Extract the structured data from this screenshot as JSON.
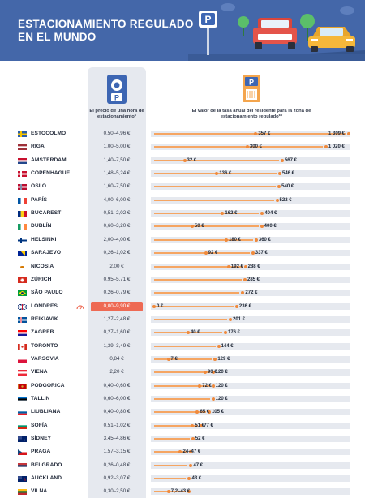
{
  "header": {
    "title_line1": "ESTACIONAMIENTO REGULADO",
    "title_line2": "EN EL MUNDO"
  },
  "columns": {
    "hourly_price": "El precio de una hora de estacionamiento*",
    "annual_fee": "El valor de la tasa anual del residente para la zona de estacionamiento regulado**"
  },
  "icons": {
    "parking_disc": "parking-disc-icon",
    "parking_meter": "parking-meter-icon",
    "highlight_marker": "speedometer-icon"
  },
  "colors": {
    "header_bg": "#4467a9",
    "bar": "#f5a562",
    "dot": "#f08a3c",
    "highlight": "#ee6a54"
  },
  "chart_data": {
    "type": "table",
    "cities": [
      {
        "name": "ESTOCOLMO",
        "flag": "SE",
        "range": "0,50–4,96 €",
        "low": 357,
        "high": 1309,
        "low_label": "357 €",
        "high_label": "1 309 €"
      },
      {
        "name": "RIGA",
        "flag": "LV",
        "range": "1,00–5,00 €",
        "low": 300,
        "high": 1020,
        "low_label": "300 €",
        "high_label": "1 020 €"
      },
      {
        "name": "ÁMSTERDAM",
        "flag": "NL",
        "range": "1,40–7,50 €",
        "low": 32,
        "high": 567,
        "low_label": "32 €",
        "high_label": "567 €"
      },
      {
        "name": "COPENHAGUE",
        "flag": "DK",
        "range": "1,48–5,24 €",
        "low": 136,
        "high": 546,
        "low_label": "136 €",
        "high_label": "546 €"
      },
      {
        "name": "OSLO",
        "flag": "NO",
        "range": "1,60–7,50 €",
        "low": 540,
        "high": null,
        "low_label": "540 €",
        "high_label": ""
      },
      {
        "name": "PARÍS",
        "flag": "FR",
        "range": "4,00–6,00 €",
        "low": 522,
        "high": null,
        "low_label": "522 €",
        "high_label": ""
      },
      {
        "name": "BUCAREST",
        "flag": "RO",
        "range": "0,51–2,02 €",
        "low": 162,
        "high": 404,
        "low_label": "162 €",
        "high_label": "404 €"
      },
      {
        "name": "DUBLÍN",
        "flag": "IE",
        "range": "0,60–3,20 €",
        "low": 50,
        "high": 400,
        "low_label": "50 €",
        "high_label": "400 €"
      },
      {
        "name": "HELSINKI",
        "flag": "FI",
        "range": "2,00–4,00 €",
        "low": 180,
        "high": 360,
        "low_label": "180 €",
        "high_label": "360 €"
      },
      {
        "name": "SARAJEVO",
        "flag": "BA",
        "range": "0,26–1,02 €",
        "low": 92,
        "high": 337,
        "low_label": "92 €",
        "high_label": "337 €"
      },
      {
        "name": "NICOSIA",
        "flag": "CY",
        "range": "2,00 €",
        "low": 192,
        "high": 288,
        "low_label": "192 €",
        "high_label": "288 €"
      },
      {
        "name": "ZÚRICH",
        "flag": "CH",
        "range": "0,95–5,71 €",
        "low": 285,
        "high": null,
        "low_label": "285 €",
        "high_label": ""
      },
      {
        "name": "SÃO PAULO",
        "flag": "BR",
        "range": "0,26–0,79 €",
        "low": 272,
        "high": null,
        "low_label": "272 €",
        "high_label": ""
      },
      {
        "name": "LONDRES",
        "flag": "GB",
        "range": "0,00–9,90 €",
        "low": 0,
        "high": 236,
        "low_label": "0 €",
        "high_label": "236 €",
        "highlight": true
      },
      {
        "name": "REIKIAVIK",
        "flag": "IS",
        "range": "1,27–2,48 €",
        "low": 201,
        "high": null,
        "low_label": "201 €",
        "high_label": ""
      },
      {
        "name": "ZAGREB",
        "flag": "HR",
        "range": "0,27–1,60 €",
        "low": 40,
        "high": 176,
        "low_label": "40 €",
        "high_label": "176 €"
      },
      {
        "name": "TORONTO",
        "flag": "CA",
        "range": "1,39–3,49 €",
        "low": 144,
        "high": null,
        "low_label": "144 €",
        "high_label": ""
      },
      {
        "name": "VARSOVIA",
        "flag": "PL",
        "range": "0,84 €",
        "low": 7,
        "high": 129,
        "low_label": "7 €",
        "high_label": "129 €"
      },
      {
        "name": "VIENA",
        "flag": "AT",
        "range": "2,20 €",
        "low": 90,
        "high": 120,
        "low_label": "90 €",
        "high_label": "120 €"
      },
      {
        "name": "PODGORICA",
        "flag": "ME",
        "range": "0,40–0,60 €",
        "low": 72,
        "high": 120,
        "low_label": "72 €",
        "high_label": "120 €"
      },
      {
        "name": "TALLIN",
        "flag": "EE",
        "range": "0,60–6,00 €",
        "low": 120,
        "high": null,
        "low_label": "120 €",
        "high_label": ""
      },
      {
        "name": "LIUBLIANA",
        "flag": "SI",
        "range": "0,40–0,80 €",
        "low": 65,
        "high": 105,
        "low_label": "65 €",
        "high_label": "105 €"
      },
      {
        "name": "SOFÍA",
        "flag": "BG",
        "range": "0,51–1,02 €",
        "low": 51,
        "high": 77,
        "low_label": "51 €",
        "high_label": "77 €"
      },
      {
        "name": "SÍDNEY",
        "flag": "AU",
        "range": "3,45–4,86 €",
        "low": 52,
        "high": null,
        "low_label": "52 €",
        "high_label": ""
      },
      {
        "name": "PRAGA",
        "flag": "CZ",
        "range": "1,57–3,15 €",
        "low": 24,
        "high": 47,
        "low_label": "24–47 €",
        "high_label": ""
      },
      {
        "name": "BELGRADO",
        "flag": "RS",
        "range": "0,26–0,48 €",
        "low": 47,
        "high": null,
        "low_label": "47 €",
        "high_label": ""
      },
      {
        "name": "AUCKLAND",
        "flag": "NZ",
        "range": "0,92–3,07 €",
        "low": 43,
        "high": null,
        "low_label": "43 €",
        "high_label": ""
      },
      {
        "name": "VILNA",
        "flag": "LT",
        "range": "0,30–2,50 €",
        "low": 7.2,
        "high": 43,
        "low_label": "7,2–43 €",
        "high_label": ""
      }
    ]
  }
}
